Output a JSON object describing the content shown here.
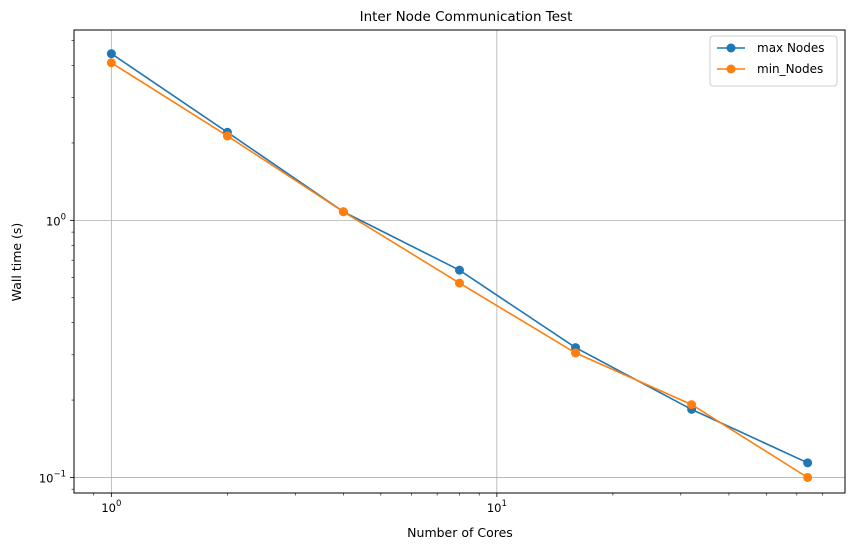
{
  "chart_data": {
    "type": "line",
    "title": "Inter Node Communication Test",
    "xlabel": "Number of Cores",
    "ylabel": "Wall time (s)",
    "xscale": "log",
    "yscale": "log",
    "xlim": [
      0.8,
      80
    ],
    "ylim": [
      0.087,
      5.5
    ],
    "grid": true,
    "legend_position": "top-right",
    "x": [
      1,
      2,
      4,
      8,
      16,
      32,
      64
    ],
    "x_ticks": [
      {
        "value": 1,
        "base": "10",
        "exp": "0"
      },
      {
        "value": 10,
        "base": "10",
        "exp": "1"
      }
    ],
    "y_ticks": [
      {
        "value": 1,
        "base": "10",
        "exp": "0"
      },
      {
        "value": 0.1,
        "base": "10",
        "exp": "−1"
      }
    ],
    "series": [
      {
        "name": "max Nodes",
        "color": "#1f77b4",
        "values": [
          4.45,
          2.2,
          1.08,
          0.64,
          0.32,
          0.184,
          0.114
        ]
      },
      {
        "name": "min_Nodes",
        "color": "#ff7f0e",
        "values": [
          4.1,
          2.13,
          1.08,
          0.57,
          0.305,
          0.192,
          0.1
        ]
      }
    ]
  }
}
